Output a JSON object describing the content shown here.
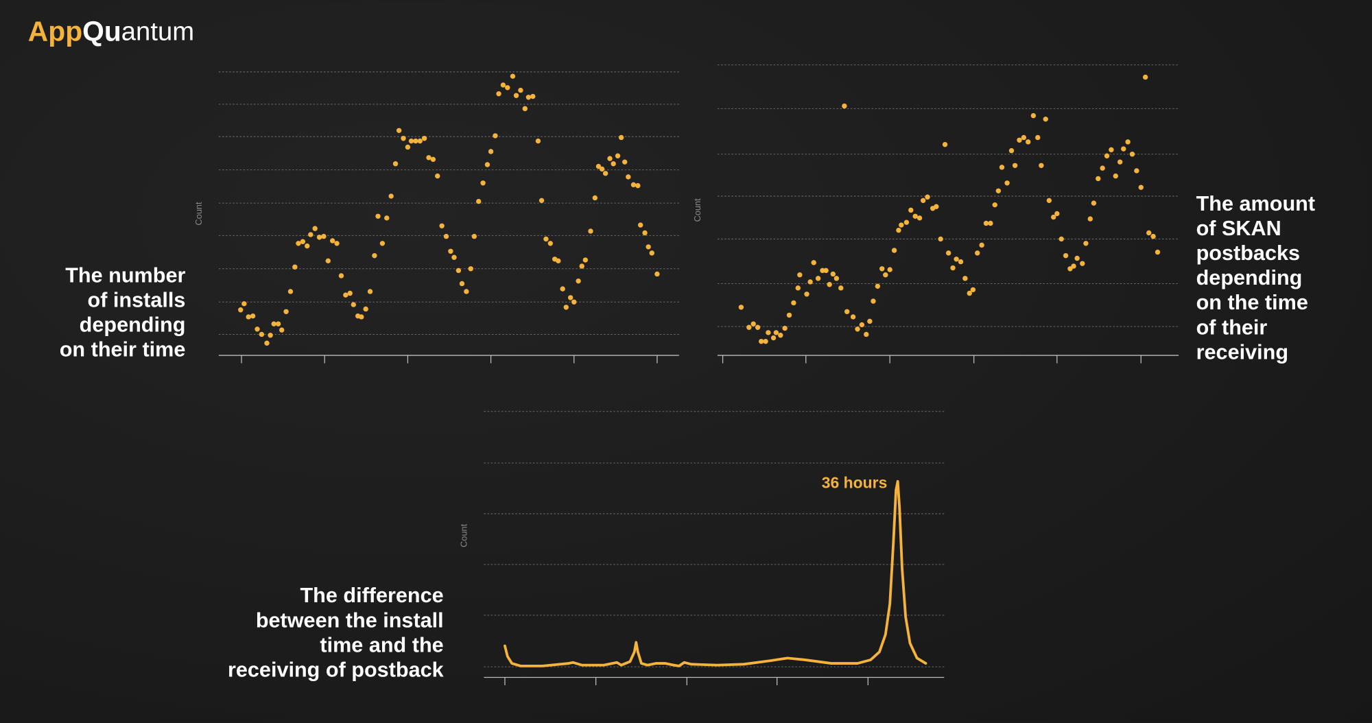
{
  "brand": [
    "App",
    "Qu",
    "antum"
  ],
  "chart_data": [
    {
      "type": "scatter",
      "title": [
        "The number",
        "of installs",
        "depending",
        "on their time"
      ],
      "ylabel": "Count",
      "color": "#f5b33c",
      "grid": true,
      "tick_labels": false,
      "xlim": [
        -26,
        500
      ],
      "xticks": [
        0,
        95,
        190,
        285,
        380,
        475
      ],
      "ylim": [
        0,
        334
      ],
      "yticks": [
        24,
        61,
        99,
        137,
        174,
        212,
        250,
        287,
        324
      ],
      "x": [
        -1,
        3,
        8,
        13,
        18,
        23,
        29,
        33,
        37,
        42,
        46,
        51,
        56,
        61,
        65,
        70,
        75,
        79,
        84,
        89,
        94,
        99,
        104,
        109,
        114,
        119,
        124,
        128,
        133,
        137,
        142,
        147,
        152,
        156,
        161,
        166,
        171,
        176,
        180,
        185,
        190,
        194,
        199,
        204,
        209,
        214,
        219,
        224,
        229,
        234,
        239,
        243,
        248,
        252,
        257,
        262,
        266,
        271,
        276,
        281,
        285,
        290,
        294,
        299,
        304,
        310,
        314,
        319,
        324,
        328,
        333,
        339,
        343,
        348,
        353,
        358,
        362,
        367,
        371,
        376,
        380,
        385,
        389,
        393,
        399,
        404,
        408,
        412,
        416,
        421,
        425,
        430,
        434,
        438,
        442,
        448,
        453,
        456,
        461,
        465,
        469,
        475
      ],
      "values": [
        52,
        59,
        44,
        45,
        30,
        24,
        14,
        23,
        36,
        36,
        29,
        50,
        73,
        101,
        128,
        130,
        125,
        138,
        145,
        135,
        136,
        108,
        131,
        128,
        91,
        69,
        71,
        58,
        45,
        44,
        53,
        73,
        114,
        159,
        128,
        157,
        182,
        219,
        257,
        248,
        238,
        245,
        245,
        245,
        248,
        226,
        224,
        205,
        148,
        136,
        119,
        112,
        97,
        82,
        73,
        99,
        136,
        176,
        197,
        218,
        233,
        251,
        299,
        309,
        306,
        319,
        297,
        303,
        282,
        295,
        296,
        245,
        177,
        133,
        128,
        110,
        108,
        76,
        55,
        66,
        61,
        85,
        102,
        109,
        142,
        180,
        216,
        213,
        208,
        225,
        219,
        228,
        249,
        221,
        204,
        195,
        194,
        149,
        140,
        124,
        117,
        93
      ]
    },
    {
      "type": "scatter",
      "title": [
        "The amount",
        "of SKAN",
        "postbacks",
        "depending",
        "on the time",
        "of their",
        "receiving"
      ],
      "ylabel": "Count",
      "color": "#f5b33c",
      "grid": true,
      "tick_labels": false,
      "xlim": [
        -6,
        521
      ],
      "xticks": [
        0,
        95,
        191,
        287,
        382,
        478
      ],
      "ylim": [
        0,
        340
      ],
      "yticks": [
        33,
        82,
        133,
        182,
        230,
        282,
        332
      ],
      "x": [
        21,
        30,
        35,
        40,
        44,
        49,
        52,
        58,
        61,
        66,
        71,
        76,
        81,
        86,
        88,
        96,
        100,
        104,
        109,
        114,
        118,
        122,
        126,
        130,
        135,
        139,
        142,
        149,
        154,
        159,
        164,
        168,
        172,
        177,
        182,
        186,
        191,
        196,
        201,
        204,
        210,
        215,
        220,
        225,
        229,
        234,
        240,
        244,
        249,
        254,
        258,
        263,
        267,
        272,
        277,
        282,
        286,
        291,
        296,
        301,
        306,
        311,
        315,
        319,
        325,
        330,
        334,
        339,
        344,
        349,
        355,
        360,
        364,
        369,
        373,
        378,
        382,
        387,
        392,
        397,
        401,
        405,
        411,
        415,
        420,
        424,
        429,
        434,
        439,
        444,
        449,
        454,
        458,
        463,
        468,
        473,
        478,
        483,
        487,
        492,
        497
      ],
      "values": [
        55,
        32,
        36,
        32,
        16,
        16,
        26,
        20,
        26,
        23,
        31,
        46,
        60,
        77,
        92,
        70,
        84,
        106,
        88,
        97,
        97,
        81,
        93,
        88,
        77,
        285,
        50,
        44,
        30,
        35,
        24,
        39,
        62,
        79,
        99,
        92,
        98,
        120,
        143,
        149,
        152,
        166,
        159,
        157,
        177,
        181,
        168,
        170,
        133,
        241,
        117,
        100,
        110,
        107,
        88,
        71,
        75,
        117,
        126,
        151,
        151,
        172,
        188,
        215,
        197,
        234,
        217,
        246,
        249,
        244,
        274,
        249,
        217,
        270,
        177,
        158,
        162,
        133,
        114,
        99,
        102,
        111,
        105,
        128,
        156,
        174,
        202,
        214,
        228,
        235,
        205,
        221,
        236,
        244,
        230,
        211,
        192,
        318,
        140,
        136,
        118
      ]
    },
    {
      "type": "line",
      "title": [
        "The difference",
        "between the install",
        "time and the",
        "receiving of postback"
      ],
      "ylabel": "Count",
      "annotation": "36 hours",
      "color": "#f5b33c",
      "grid": true,
      "tick_labels": false,
      "xlim": [
        -24,
        502
      ],
      "xticks": [
        0,
        104,
        208,
        311,
        415
      ],
      "ylim": [
        0,
        310
      ],
      "yticks": [
        12,
        71,
        129,
        187,
        245,
        304
      ],
      "x": [
        0,
        3,
        8,
        18,
        43,
        73,
        78,
        88,
        113,
        128,
        133,
        138,
        143,
        148,
        150,
        152,
        156,
        163,
        173,
        183,
        193,
        199,
        205,
        213,
        243,
        273,
        303,
        323,
        343,
        373,
        403,
        418,
        428,
        435,
        440,
        444,
        447,
        449,
        451,
        454,
        458,
        463,
        471,
        481
      ],
      "values": [
        36,
        24,
        16,
        13,
        13,
        16,
        17,
        14,
        14,
        17,
        14,
        16,
        18,
        29,
        40,
        29,
        16,
        14,
        16,
        16,
        14,
        13,
        17,
        15,
        14,
        15,
        19,
        22,
        20,
        16,
        16,
        20,
        29,
        49,
        84,
        154,
        214,
        224,
        194,
        124,
        69,
        39,
        22,
        16
      ]
    }
  ]
}
